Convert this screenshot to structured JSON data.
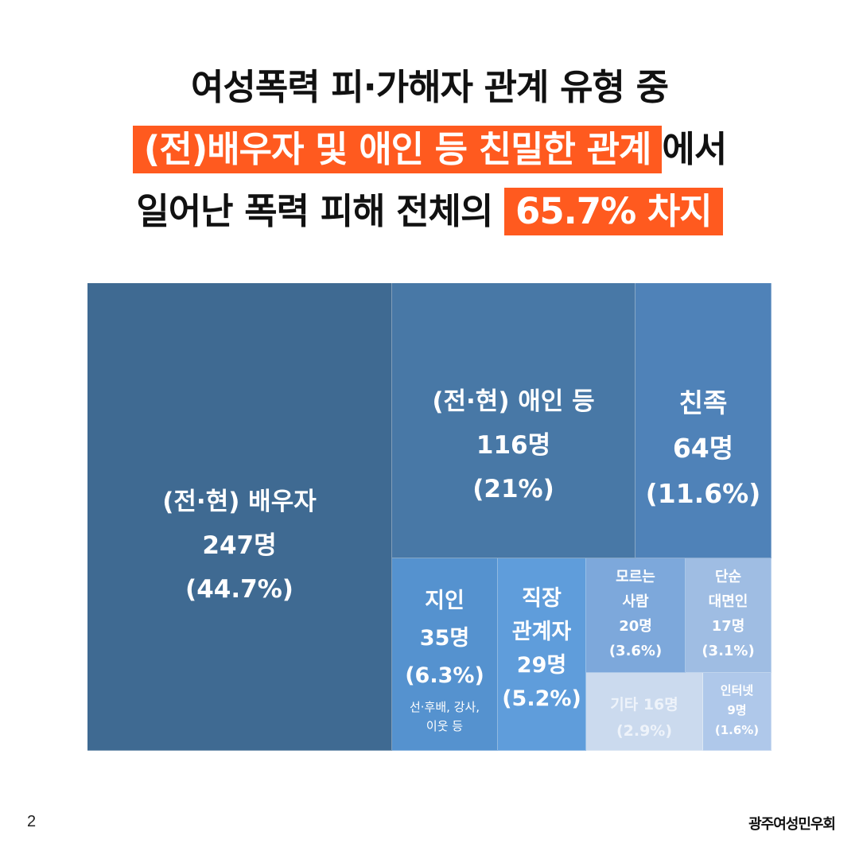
{
  "headline": {
    "line1": "여성폭력 피·가해자 관계 유형 중",
    "line2_highlight": "(전)배우자 및 애인 등 친밀한 관계",
    "line2_tail": "에서",
    "line3_lead": "일어난 폭력 피해 전체의",
    "line3_highlight": "65.7% 차지"
  },
  "colors": {
    "accent": "#ff5a1f",
    "spouse": "#3f6a92",
    "lover": "#4878a6",
    "relatives": "#4f82b8",
    "acquaintance": "#5592cf",
    "coworker": "#5f9ddb",
    "stranger": "#7da8db",
    "one_time": "#9fbde3",
    "other": "#cbdaee",
    "internet": "#afc8ea"
  },
  "chart_data": {
    "type": "treemap",
    "unit": "명",
    "items": [
      {
        "key": "spouse",
        "lines": [
          "(전·현) 배우자",
          "247명",
          "(44.7%)"
        ],
        "value": 247,
        "percent": 44.7
      },
      {
        "key": "lover",
        "lines": [
          "(전·현) 애인 등",
          "116명",
          "(21%)"
        ],
        "value": 116,
        "percent": 21
      },
      {
        "key": "relatives",
        "lines": [
          "친족",
          "64명",
          "(11.6%)"
        ],
        "value": 64,
        "percent": 11.6
      },
      {
        "key": "acquaintance",
        "lines": [
          "지인",
          "35명",
          "(6.3%)"
        ],
        "note": [
          "선·후배, 강사,",
          "이웃 등"
        ],
        "value": 35,
        "percent": 6.3
      },
      {
        "key": "coworker",
        "lines": [
          "직장",
          "관계자",
          "29명",
          "(5.2%)"
        ],
        "value": 29,
        "percent": 5.2
      },
      {
        "key": "stranger",
        "lines": [
          "모르는",
          "사람",
          "20명",
          "(3.6%)"
        ],
        "value": 20,
        "percent": 3.6
      },
      {
        "key": "one_time",
        "lines": [
          "단순",
          "대면인",
          "17명",
          "(3.1%)"
        ],
        "value": 17,
        "percent": 3.1
      },
      {
        "key": "other",
        "lines": [
          "기타 16명",
          "(2.9%)"
        ],
        "value": 16,
        "percent": 2.9
      },
      {
        "key": "internet",
        "lines": [
          "인터넷",
          "9명",
          "(1.6%)"
        ],
        "value": 9,
        "percent": 1.6
      }
    ]
  },
  "footer": {
    "page_number": "2",
    "logo_text": "광주여성민우회"
  }
}
